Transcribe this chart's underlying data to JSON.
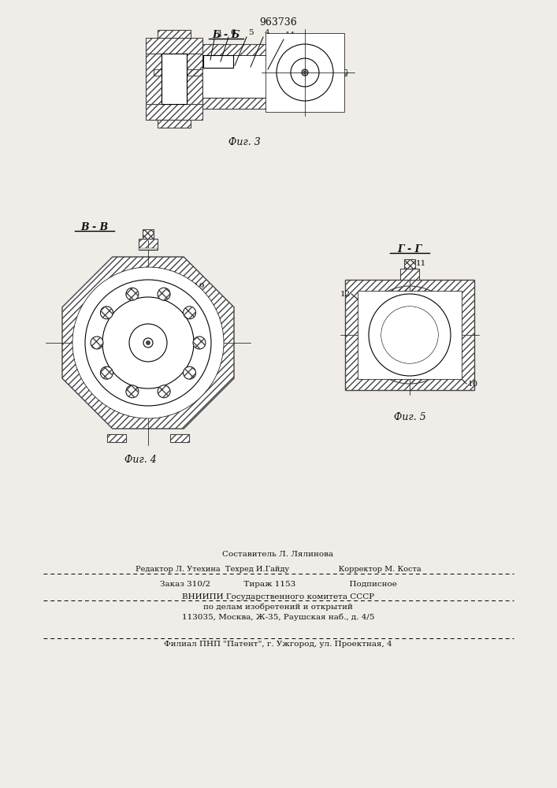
{
  "patent_number": "963736",
  "background_color": "#f0ede8",
  "fig3_label": "Б - Б",
  "fig4_label": "В - В",
  "fig5_label": "Г - Г",
  "fig3_caption": "Фиг. 3",
  "fig4_caption": "Фиг. 4",
  "fig5_caption": "Фиг. 5",
  "footer_line1": "Составитель Л. Лялинова",
  "footer_line2": "Редактор Л. Утехина  Техред И.Гайду                    Корректор М. Коста",
  "footer_line3": "Заказ 310/2             Тираж 1153                     Подписное",
  "footer_line4": "ВНИИПИ Государственного комитета СССР",
  "footer_line5": "по делам изобретений и открытий",
  "footer_line6": "113035, Москва, Ж-35, Раушская наб., д. 4/5",
  "footer_line7": "Филиал ПНП \"Патент\", г. Ужгород, ул. Проектная, 4",
  "line_color": "#000000",
  "hatch_color": "#444444",
  "text_color": "#111111"
}
